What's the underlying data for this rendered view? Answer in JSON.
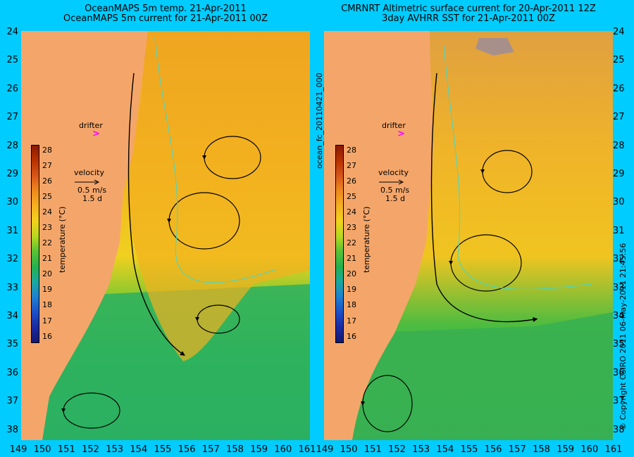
{
  "left_panel": {
    "title_line1": "OceanMAPS 5m temp. 21-Apr-2011",
    "title_line2": "OceanMAPS 5m current for 21-Apr-2011 00Z"
  },
  "right_panel": {
    "title_line1": "CMRNRT Altimetric surface current for 20-Apr-2011 12Z",
    "title_line2": "3day AVHRR SST for 21-Apr-2011 00Z"
  },
  "y_axis": {
    "labels": [
      "24",
      "25",
      "26",
      "27",
      "28",
      "29",
      "30",
      "31",
      "32",
      "33",
      "34",
      "35",
      "36",
      "37",
      "38"
    ]
  },
  "x_axis": {
    "labels": [
      "149",
      "150",
      "151",
      "152",
      "153",
      "154",
      "155",
      "156",
      "157",
      "158",
      "159",
      "160",
      "161"
    ]
  },
  "colorbar": {
    "ticks": [
      "28",
      "27",
      "26",
      "25",
      "24",
      "23",
      "22",
      "21",
      "20",
      "19",
      "18",
      "17",
      "16"
    ],
    "label": "temperature (°C)",
    "colors": [
      "#8b1a00",
      "#b83200",
      "#d8561a",
      "#ee8a1e",
      "#f5b020",
      "#f2d21c",
      "#b6d820",
      "#58c234",
      "#24b050",
      "#1aa8a0",
      "#1e80d0",
      "#1c50c8",
      "#1a2aa0",
      "#141870"
    ]
  },
  "velocity_legend": {
    "title": "velocity",
    "speed": "0.5 m/s",
    "duration": "1.5 d"
  },
  "drifter": {
    "label": "drifter",
    "marker": ">"
  },
  "run_id": "ocean_fc_20110421_000",
  "copyright": "© Copyright CSIRO 2011   06-May-2011 21:45:56",
  "colors": {
    "background": "#00ccff",
    "land": "#f4a66a",
    "drifter": "#ff00ff",
    "contour": "#3fd9d0"
  }
}
